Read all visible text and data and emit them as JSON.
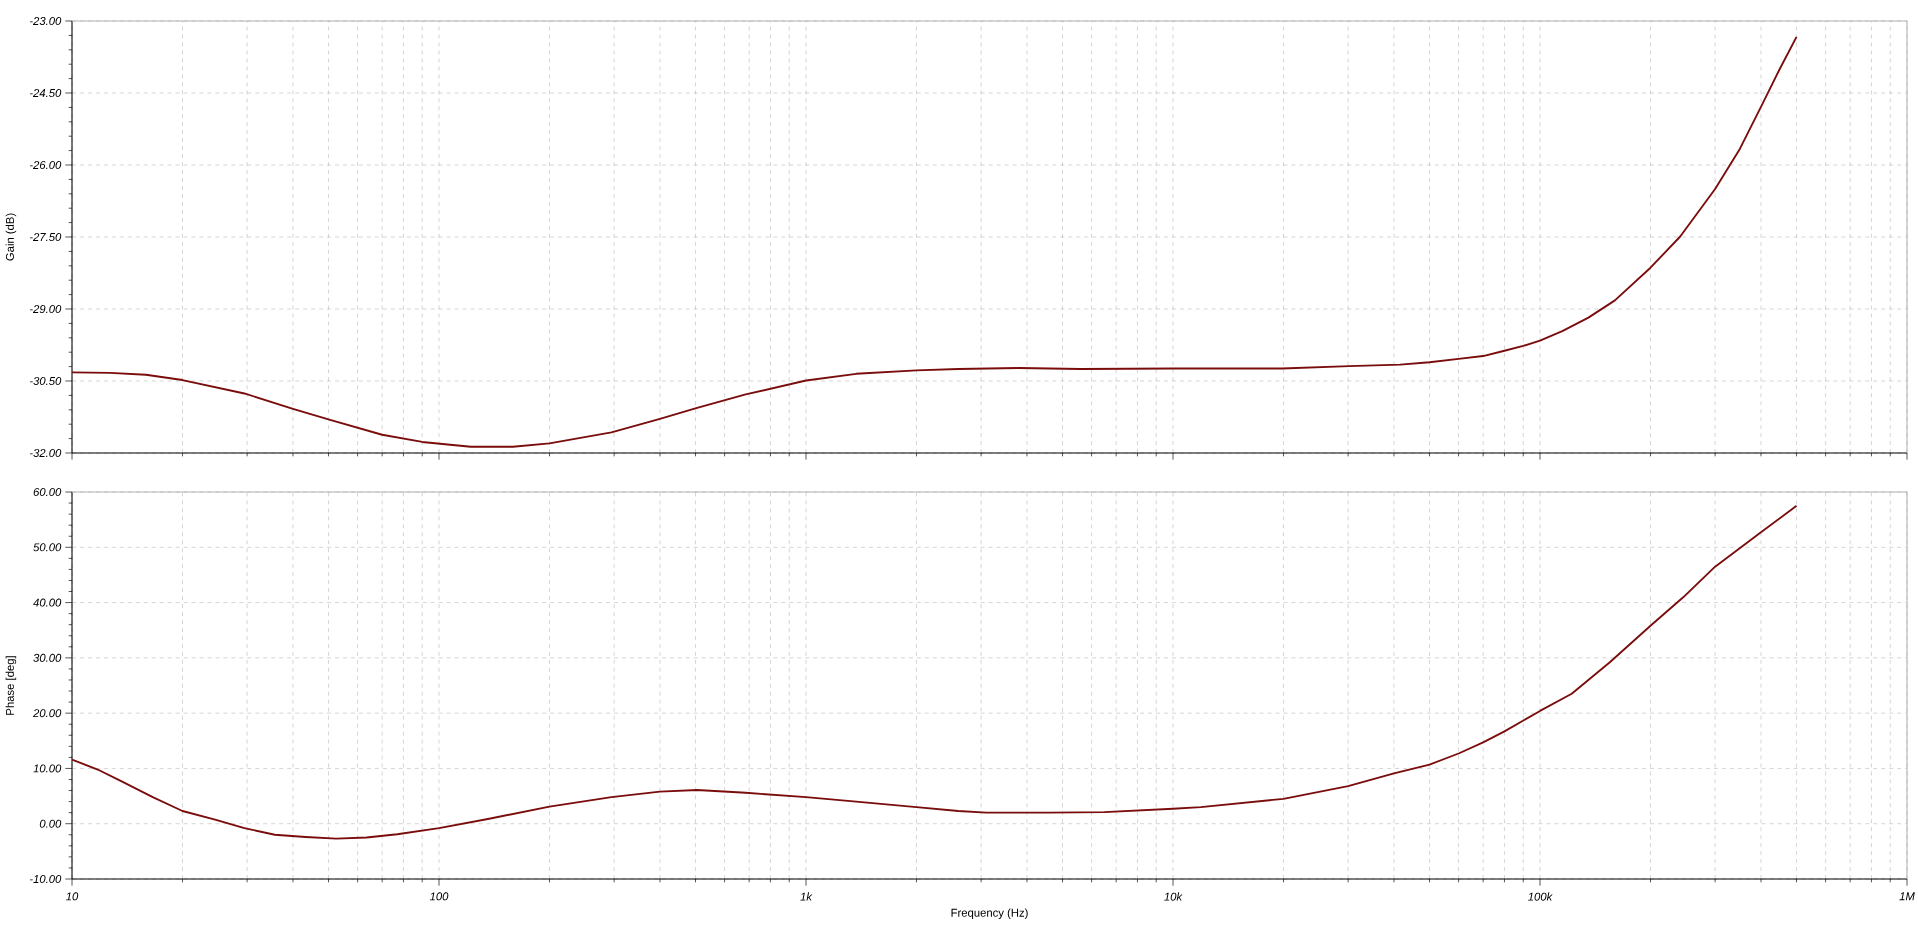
{
  "chart_data": [
    {
      "type": "line",
      "ylabel": "Gain (dB)",
      "log": "x",
      "grid": true,
      "tick_labels": "y",
      "color": "#7a0c0c",
      "xlim": [
        10,
        1000000
      ],
      "xticks": [
        {
          "value": 10,
          "label": null
        },
        {
          "value": 100,
          "label": null
        },
        {
          "value": 1000,
          "label": null
        },
        {
          "value": 10000,
          "label": null
        },
        {
          "value": 100000,
          "label": null
        },
        {
          "value": 1000000,
          "label": null
        }
      ],
      "ylim": [
        -32,
        -23
      ],
      "yticks": [
        {
          "value": -32,
          "label": "-32.00"
        },
        {
          "value": -30.5,
          "label": "-30.50"
        },
        {
          "value": -29,
          "label": "-29.00"
        },
        {
          "value": -27.5,
          "label": "-27.50"
        },
        {
          "value": -26,
          "label": "-26.00"
        },
        {
          "value": -24.5,
          "label": "-24.50"
        },
        {
          "value": -23,
          "label": "-23.00"
        }
      ],
      "x": [
        10,
        12.7,
        15.9,
        20,
        29.5,
        40,
        50.5,
        70,
        90,
        122,
        159,
        200,
        295,
        400,
        505,
        685,
        1000,
        1370,
        2000,
        2600,
        3800,
        5600,
        10000,
        19800,
        30200,
        41600,
        50000,
        60000,
        70000,
        80000,
        90000,
        100000,
        115000,
        135500,
        160000,
        200000,
        241000,
        300000,
        349000,
        400000,
        450000,
        500000
      ],
      "values": [
        -30.32,
        -30.33,
        -30.37,
        -30.48,
        -30.76,
        -31.08,
        -31.31,
        -31.62,
        -31.77,
        -31.87,
        -31.87,
        -31.8,
        -31.57,
        -31.29,
        -31.06,
        -30.78,
        -30.49,
        -30.35,
        -30.28,
        -30.25,
        -30.23,
        -30.25,
        -30.24,
        -30.24,
        -30.19,
        -30.16,
        -30.11,
        -30.04,
        -29.98,
        -29.87,
        -29.77,
        -29.66,
        -29.46,
        -29.18,
        -28.82,
        -28.14,
        -27.49,
        -26.5,
        -25.69,
        -24.79,
        -24.0,
        -23.33
      ]
    },
    {
      "type": "line",
      "ylabel": "Phase [deg]",
      "xlabel": "Frequency (Hz)",
      "log": "x",
      "grid": true,
      "color": "#7a0c0c",
      "xlim": [
        10,
        1000000
      ],
      "xticks": [
        10,
        100,
        {
          "value": 1000,
          "label": "1k"
        },
        {
          "value": 10000,
          "label": "10k"
        },
        {
          "value": 100000,
          "label": "100k"
        },
        {
          "value": 1000000,
          "label": "1M"
        }
      ],
      "ylim": [
        -10,
        60
      ],
      "yticks": [
        {
          "value": -10,
          "label": "-10.00"
        },
        {
          "value": 0,
          "label": "0.00"
        },
        {
          "value": 10,
          "label": "10.00"
        },
        {
          "value": 20,
          "label": "20.00"
        },
        {
          "value": 30,
          "label": "30.00"
        },
        {
          "value": 40,
          "label": "40.00"
        },
        {
          "value": 50,
          "label": "50.00"
        },
        {
          "value": 60,
          "label": "60.00"
        }
      ],
      "x": [
        10,
        11.75,
        13.7,
        16.6,
        20,
        24.4,
        29.5,
        35.7,
        43.3,
        52.5,
        63.5,
        77,
        100,
        137,
        200,
        295,
        400,
        505,
        685,
        1000,
        1370,
        2000,
        2600,
        3100,
        4600,
        6500,
        10000,
        11900,
        20000,
        30000,
        40000,
        50000,
        60000,
        70000,
        80000,
        100000,
        122000,
        155000,
        200000,
        246000,
        300000,
        400000,
        500000
      ],
      "values": [
        11.6,
        9.8,
        7.6,
        4.8,
        2.3,
        0.8,
        -0.8,
        -2.0,
        -2.4,
        -2.7,
        -2.5,
        -1.9,
        -0.8,
        0.9,
        3.1,
        4.8,
        5.8,
        6.1,
        5.6,
        4.8,
        4.0,
        3.0,
        2.3,
        2.0,
        2.0,
        2.1,
        2.7,
        3.0,
        4.5,
        6.8,
        9.1,
        10.7,
        12.7,
        14.7,
        16.7,
        20.4,
        23.5,
        29.2,
        35.8,
        41.0,
        46.5,
        52.7,
        57.5
      ]
    }
  ]
}
